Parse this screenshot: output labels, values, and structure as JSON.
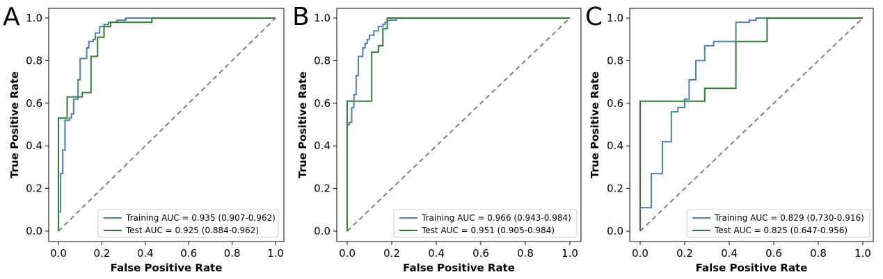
{
  "chart_data": [
    {
      "type": "line",
      "panel_label": "A",
      "xlabel": "False Positive Rate",
      "ylabel": "True Positive Rate",
      "xlim": [
        0,
        1
      ],
      "ylim": [
        0,
        1
      ],
      "x_ticks": [
        "0.0",
        "0.2",
        "0.4",
        "0.6",
        "0.8",
        "1.0"
      ],
      "y_ticks": [
        "0.0",
        "0.2",
        "0.4",
        "0.6",
        "0.8",
        "1.0"
      ],
      "grid": false,
      "legend_position": "lower-right",
      "series": [
        {
          "name": "Training AUC = 0.935 (0.907-0.962)",
          "color": "#4c7fb8",
          "points": [
            [
              0,
              0
            ],
            [
              0,
              0.09
            ],
            [
              0.01,
              0.09
            ],
            [
              0.01,
              0.27
            ],
            [
              0.02,
              0.27
            ],
            [
              0.02,
              0.38
            ],
            [
              0.03,
              0.38
            ],
            [
              0.03,
              0.52
            ],
            [
              0.05,
              0.52
            ],
            [
              0.05,
              0.53
            ],
            [
              0.06,
              0.53
            ],
            [
              0.06,
              0.55
            ],
            [
              0.07,
              0.55
            ],
            [
              0.07,
              0.62
            ],
            [
              0.09,
              0.62
            ],
            [
              0.09,
              0.71
            ],
            [
              0.1,
              0.71
            ],
            [
              0.1,
              0.81
            ],
            [
              0.13,
              0.81
            ],
            [
              0.13,
              0.86
            ],
            [
              0.14,
              0.86
            ],
            [
              0.14,
              0.89
            ],
            [
              0.16,
              0.89
            ],
            [
              0.16,
              0.9
            ],
            [
              0.17,
              0.9
            ],
            [
              0.17,
              0.93
            ],
            [
              0.19,
              0.93
            ],
            [
              0.19,
              0.96
            ],
            [
              0.21,
              0.96
            ],
            [
              0.21,
              0.97
            ],
            [
              0.23,
              0.97
            ],
            [
              0.23,
              0.98
            ],
            [
              0.27,
              0.98
            ],
            [
              0.27,
              0.99
            ],
            [
              0.31,
              0.99
            ],
            [
              0.31,
              1.0
            ],
            [
              1.0,
              1.0
            ]
          ]
        },
        {
          "name": "Test AUC = 0.925 (0.884-0.962)",
          "color": "#2e7d32",
          "points": [
            [
              0,
              0
            ],
            [
              0,
              0.53
            ],
            [
              0.04,
              0.53
            ],
            [
              0.04,
              0.63
            ],
            [
              0.11,
              0.63
            ],
            [
              0.11,
              0.65
            ],
            [
              0.15,
              0.65
            ],
            [
              0.15,
              0.82
            ],
            [
              0.18,
              0.82
            ],
            [
              0.18,
              0.91
            ],
            [
              0.21,
              0.91
            ],
            [
              0.21,
              0.96
            ],
            [
              0.24,
              0.96
            ],
            [
              0.24,
              0.98
            ],
            [
              0.43,
              0.98
            ],
            [
              0.43,
              1.0
            ],
            [
              1.0,
              1.0
            ]
          ]
        }
      ]
    },
    {
      "type": "line",
      "panel_label": "B",
      "xlabel": "False Positive Rate",
      "ylabel": "True Positive Rate",
      "xlim": [
        0,
        1
      ],
      "ylim": [
        0,
        1
      ],
      "x_ticks": [
        "0.0",
        "0.2",
        "0.4",
        "0.6",
        "0.8",
        "1.0"
      ],
      "y_ticks": [
        "0.0",
        "0.2",
        "0.4",
        "0.6",
        "0.8",
        "1.0"
      ],
      "grid": false,
      "legend_position": "lower-right",
      "series": [
        {
          "name": "Training AUC = 0.966 (0.943-0.984)",
          "color": "#4c7fb8",
          "points": [
            [
              0,
              0
            ],
            [
              0,
              0.5
            ],
            [
              0.01,
              0.5
            ],
            [
              0.01,
              0.51
            ],
            [
              0.02,
              0.51
            ],
            [
              0.02,
              0.58
            ],
            [
              0.03,
              0.58
            ],
            [
              0.03,
              0.64
            ],
            [
              0.04,
              0.64
            ],
            [
              0.04,
              0.73
            ],
            [
              0.05,
              0.73
            ],
            [
              0.05,
              0.82
            ],
            [
              0.07,
              0.82
            ],
            [
              0.07,
              0.86
            ],
            [
              0.08,
              0.86
            ],
            [
              0.08,
              0.88
            ],
            [
              0.09,
              0.88
            ],
            [
              0.09,
              0.9
            ],
            [
              0.1,
              0.9
            ],
            [
              0.1,
              0.92
            ],
            [
              0.12,
              0.92
            ],
            [
              0.12,
              0.94
            ],
            [
              0.14,
              0.94
            ],
            [
              0.14,
              0.96
            ],
            [
              0.16,
              0.96
            ],
            [
              0.16,
              0.97
            ],
            [
              0.17,
              0.97
            ],
            [
              0.17,
              0.98
            ],
            [
              0.18,
              0.98
            ],
            [
              0.18,
              0.99
            ],
            [
              0.22,
              0.99
            ],
            [
              0.22,
              1.0
            ],
            [
              1.0,
              1.0
            ]
          ]
        },
        {
          "name": "Test AUC = 0.951 (0.905-0.984)",
          "color": "#2e7d32",
          "points": [
            [
              0,
              0
            ],
            [
              0,
              0.61
            ],
            [
              0.11,
              0.61
            ],
            [
              0.11,
              0.84
            ],
            [
              0.14,
              0.84
            ],
            [
              0.14,
              0.87
            ],
            [
              0.16,
              0.87
            ],
            [
              0.16,
              0.95
            ],
            [
              0.18,
              0.95
            ],
            [
              0.18,
              1.0
            ],
            [
              1.0,
              1.0
            ]
          ]
        }
      ]
    },
    {
      "type": "line",
      "panel_label": "C",
      "xlabel": "False Positive Rate",
      "ylabel": "True Positive Rate",
      "xlim": [
        0,
        1
      ],
      "ylim": [
        0,
        1
      ],
      "x_ticks": [
        "0.0",
        "0.2",
        "0.4",
        "0.6",
        "0.8",
        "1.0"
      ],
      "y_ticks": [
        "0.0",
        "0.2",
        "0.4",
        "0.6",
        "0.8",
        "1.0"
      ],
      "grid": false,
      "legend_position": "lower-right",
      "series": [
        {
          "name": "Training AUC = 0.829 (0.730-0.916)",
          "color": "#4c7fb8",
          "points": [
            [
              0,
              0
            ],
            [
              0,
              0.11
            ],
            [
              0.05,
              0.11
            ],
            [
              0.05,
              0.27
            ],
            [
              0.1,
              0.27
            ],
            [
              0.1,
              0.42
            ],
            [
              0.14,
              0.42
            ],
            [
              0.14,
              0.56
            ],
            [
              0.17,
              0.56
            ],
            [
              0.17,
              0.58
            ],
            [
              0.2,
              0.58
            ],
            [
              0.2,
              0.62
            ],
            [
              0.22,
              0.62
            ],
            [
              0.22,
              0.71
            ],
            [
              0.25,
              0.71
            ],
            [
              0.25,
              0.8
            ],
            [
              0.29,
              0.8
            ],
            [
              0.29,
              0.87
            ],
            [
              0.33,
              0.87
            ],
            [
              0.33,
              0.89
            ],
            [
              0.43,
              0.89
            ],
            [
              0.43,
              0.98
            ],
            [
              0.49,
              0.98
            ],
            [
              0.49,
              0.99
            ],
            [
              0.52,
              0.99
            ],
            [
              0.52,
              1.0
            ],
            [
              1.0,
              1.0
            ]
          ]
        },
        {
          "name": "Test AUC = 0.825 (0.647-0.956)",
          "color": "#2e7d32",
          "points": [
            [
              0,
              0
            ],
            [
              0,
              0.61
            ],
            [
              0.29,
              0.61
            ],
            [
              0.29,
              0.67
            ],
            [
              0.43,
              0.67
            ],
            [
              0.43,
              0.89
            ],
            [
              0.57,
              0.89
            ],
            [
              0.57,
              1.0
            ],
            [
              1.0,
              1.0
            ]
          ]
        }
      ]
    }
  ]
}
